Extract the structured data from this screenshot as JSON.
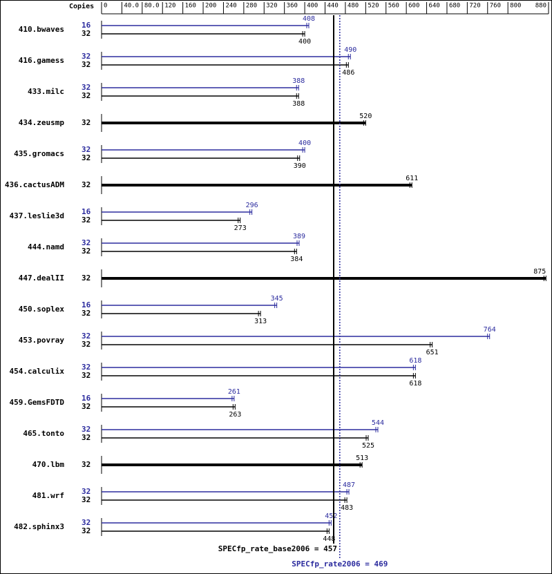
{
  "chart_data": {
    "type": "bar",
    "orientation": "horizontal",
    "copies_header": "Copies",
    "categories": [
      "410.bwaves",
      "416.gamess",
      "433.milc",
      "434.zeusmp",
      "435.gromacs",
      "436.cactusADM",
      "437.leslie3d",
      "444.namd",
      "447.dealII",
      "450.soplex",
      "453.povray",
      "454.calculix",
      "459.GemsFDTD",
      "465.tonto",
      "470.lbm",
      "481.wrf",
      "482.sphinx3"
    ],
    "series": [
      {
        "color": "#000000",
        "copies": [
          32,
          32,
          32,
          32,
          32,
          32,
          32,
          32,
          32,
          32,
          32,
          32,
          32,
          32,
          32,
          32,
          32
        ],
        "values": [
          400,
          486,
          388,
          520,
          390,
          611,
          273,
          384,
          875,
          313,
          651,
          618,
          263,
          525,
          513,
          483,
          448
        ]
      },
      {
        "color": "#2b2b9e",
        "copies": [
          16,
          32,
          32,
          null,
          32,
          null,
          16,
          32,
          null,
          16,
          32,
          32,
          16,
          32,
          null,
          32,
          32
        ],
        "values": [
          408,
          490,
          388,
          null,
          400,
          null,
          296,
          389,
          null,
          345,
          764,
          618,
          261,
          544,
          null,
          487,
          452
        ]
      }
    ],
    "xlim": [
      0,
      880
    ],
    "xticks": [
      0,
      {
        "value": 40,
        "label": "40.0"
      },
      {
        "value": 80,
        "label": "80.0"
      },
      120,
      160,
      200,
      240,
      280,
      320,
      360,
      400,
      440,
      480,
      520,
      560,
      600,
      640,
      680,
      720,
      760,
      800,
      880
    ],
    "reference_lines": [
      {
        "value": 457,
        "label": "SPECfp_rate_base2006 = 457",
        "color": "#000000",
        "style": "solid"
      },
      {
        "value": 469,
        "label": "SPECfp_rate2006 = 469",
        "color": "#2b2b9e",
        "style": "dotted"
      }
    ]
  }
}
